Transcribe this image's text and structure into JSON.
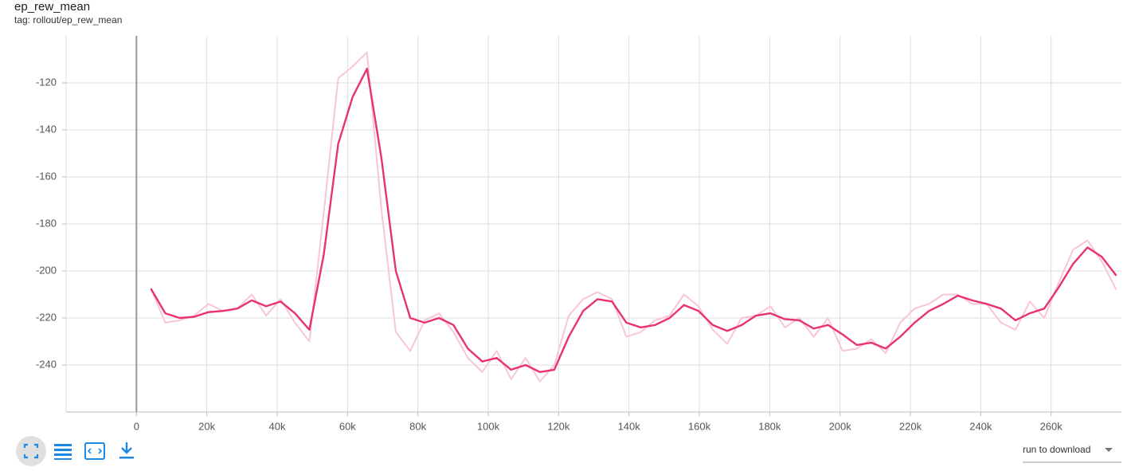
{
  "chart_data": {
    "type": "line",
    "title": "ep_rew_mean",
    "subtitle": "tag: rollout/ep_rew_mean",
    "x": [
      4096,
      8192,
      12288,
      16384,
      20480,
      24576,
      28672,
      32768,
      36864,
      40960,
      45056,
      49152,
      53248,
      57344,
      61440,
      65536,
      69632,
      73728,
      77824,
      81920,
      86016,
      90112,
      94208,
      98304,
      102400,
      106496,
      110592,
      114688,
      118784,
      122880,
      126976,
      131072,
      135168,
      139264,
      143360,
      147456,
      151552,
      155648,
      159744,
      163840,
      167936,
      172032,
      176128,
      180224,
      184320,
      188416,
      192512,
      196608,
      200704,
      204800,
      208896,
      212992,
      217088,
      221184,
      225280,
      229376,
      233472,
      237568,
      241664,
      245760,
      249856,
      253952,
      258048,
      262144,
      266240,
      270336,
      274432,
      278528
    ],
    "series": [
      {
        "color": "#f8c6d6",
        "values": [
          -207.5,
          -222,
          -221,
          -219,
          -214,
          -217,
          -216,
          -210,
          -219,
          -212,
          -222,
          -230,
          -175,
          -118,
          -113,
          -107,
          -174,
          -226,
          -234,
          -221,
          -218,
          -226,
          -237,
          -243,
          -234,
          -246,
          -237,
          -247,
          -240,
          -219,
          -212,
          -209,
          -212,
          -228,
          -226,
          -221,
          -219,
          -210,
          -215,
          -225,
          -231,
          -220,
          -219,
          -215,
          -224,
          -220,
          -228,
          -220,
          -234,
          -233,
          -229,
          -235,
          -222,
          -216,
          -214,
          -210,
          -210,
          -214,
          -214,
          -222,
          -225,
          -213,
          -220,
          -205,
          -191,
          -187,
          -196,
          -208
        ]
      },
      {
        "color": "#e8336d",
        "values": [
          -207.5,
          -218,
          -220,
          -219.5,
          -217.5,
          -217,
          -216,
          -212.5,
          -215,
          -213,
          -218,
          -225,
          -193,
          -146,
          -126,
          -114,
          -152,
          -200,
          -220,
          -222,
          -220,
          -223,
          -233,
          -238.5,
          -237,
          -242,
          -240,
          -243,
          -242,
          -228,
          -217,
          -212,
          -213,
          -222,
          -224,
          -223,
          -220,
          -214.5,
          -217,
          -223,
          -225.5,
          -223,
          -219,
          -218,
          -220.5,
          -221,
          -224.5,
          -223,
          -227,
          -231.5,
          -230.5,
          -233,
          -228,
          -222,
          -217,
          -214,
          -210.5,
          -212.5,
          -214,
          -216,
          -221,
          -218,
          -216,
          -207,
          -197,
          -190,
          -194,
          -202
        ]
      }
    ],
    "xlim": [
      -20000,
      280000
    ],
    "ylim": [
      -260,
      -100
    ],
    "xticks": [
      0,
      {
        "value": 20000,
        "label": "20k"
      },
      {
        "value": 40000,
        "label": "40k"
      },
      {
        "value": 60000,
        "label": "60k"
      },
      {
        "value": 80000,
        "label": "80k"
      },
      {
        "value": 100000,
        "label": "100k"
      },
      {
        "value": 120000,
        "label": "120k"
      },
      {
        "value": 140000,
        "label": "140k"
      },
      {
        "value": 160000,
        "label": "160k"
      },
      {
        "value": 180000,
        "label": "180k"
      },
      {
        "value": 200000,
        "label": "200k"
      },
      {
        "value": 220000,
        "label": "220k"
      },
      {
        "value": 240000,
        "label": "240k"
      },
      {
        "value": 260000,
        "label": "260k"
      }
    ],
    "yticks": [
      -240,
      -220,
      -200,
      -180,
      -160,
      -140,
      -120
    ],
    "grid": true
  },
  "controls": {
    "run_select": "run to download"
  }
}
